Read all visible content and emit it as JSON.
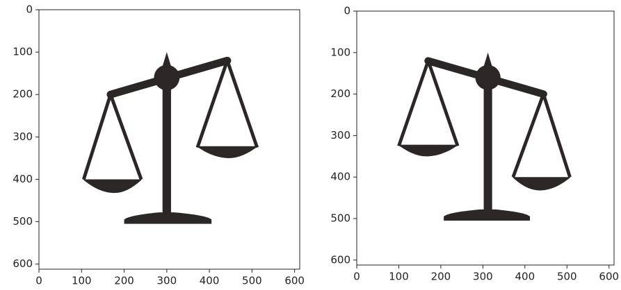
{
  "chart_data": [
    {
      "type": "image",
      "xlim": [
        0,
        612
      ],
      "ylim": [
        612,
        0
      ],
      "xticks": [
        0,
        100,
        200,
        300,
        400,
        500,
        600
      ],
      "yticks": [
        0,
        100,
        200,
        300,
        400,
        500,
        600
      ]
    },
    {
      "type": "image",
      "xlim": [
        0,
        612
      ],
      "ylim": [
        612,
        0
      ],
      "xticks": [
        0,
        100,
        200,
        300,
        400,
        500,
        600
      ],
      "yticks": [
        0,
        100,
        200,
        300,
        400,
        500,
        600
      ]
    }
  ]
}
